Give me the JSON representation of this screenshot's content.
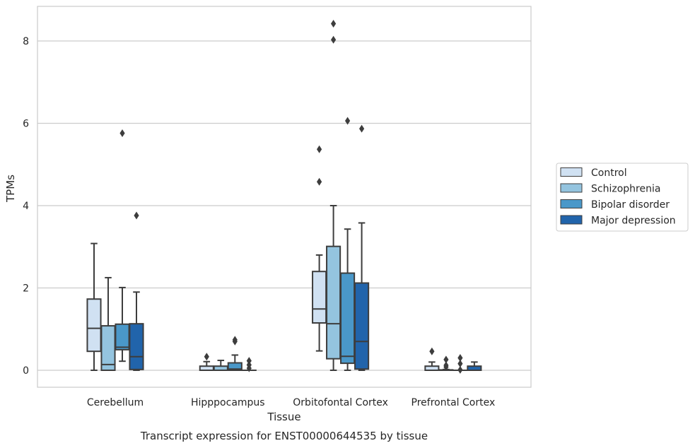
{
  "caption": "Transcript expression for ENST00000644535 by tissue",
  "chart_data": {
    "type": "box",
    "xlabel": "Tissue",
    "ylabel": "TPMs",
    "ylim": [
      -0.4,
      8.85
    ],
    "yticks": [
      0,
      2,
      4,
      6,
      8
    ],
    "grid": "horizontal",
    "legend_position": "right",
    "categories": [
      "Cerebellum",
      "Hipppocampus",
      "Orbitofontal Cortex",
      "Prefrontal Cortex"
    ],
    "series": [
      {
        "name": "Control",
        "color": "#d0e1f2",
        "boxes": [
          {
            "whislo": 0.0,
            "q1": 0.46,
            "med": 1.02,
            "q3": 1.73,
            "whishi": 3.08,
            "fliers": []
          },
          {
            "whislo": 0.0,
            "q1": 0.0,
            "med": 0.0,
            "q3": 0.1,
            "whishi": 0.21,
            "fliers": [
              0.33
            ]
          },
          {
            "whislo": 0.47,
            "q1": 1.15,
            "med": 1.49,
            "q3": 2.4,
            "whishi": 2.8,
            "fliers": [
              4.58,
              5.37
            ]
          },
          {
            "whislo": 0.0,
            "q1": 0.0,
            "med": 0.0,
            "q3": 0.1,
            "whishi": 0.2,
            "fliers": [
              0.46
            ]
          }
        ]
      },
      {
        "name": "Schizophrenia",
        "color": "#94c4df",
        "boxes": [
          {
            "whislo": 0.0,
            "q1": 0.0,
            "med": 0.14,
            "q3": 1.08,
            "whishi": 2.25,
            "fliers": []
          },
          {
            "whislo": 0.0,
            "q1": 0.0,
            "med": 0.0,
            "q3": 0.1,
            "whishi": 0.24,
            "fliers": []
          },
          {
            "whislo": 0.0,
            "q1": 0.28,
            "med": 1.13,
            "q3": 3.01,
            "whishi": 4.0,
            "fliers": [
              8.03,
              8.42
            ]
          },
          {
            "whislo": 0.0,
            "q1": 0.0,
            "med": 0.0,
            "q3": 0.01,
            "whishi": 0.02,
            "fliers": [
              0.08,
              0.12,
              0.26
            ]
          }
        ]
      },
      {
        "name": "Bipolar disorder",
        "color": "#4a98c9",
        "boxes": [
          {
            "whislo": 0.22,
            "q1": 0.5,
            "med": 0.56,
            "q3": 1.12,
            "whishi": 2.01,
            "fliers": [
              5.76
            ]
          },
          {
            "whislo": 0.0,
            "q1": 0.0,
            "med": 0.03,
            "q3": 0.18,
            "whishi": 0.37,
            "fliers": [
              0.7,
              0.74
            ]
          },
          {
            "whislo": 0.0,
            "q1": 0.17,
            "med": 0.34,
            "q3": 2.36,
            "whishi": 3.43,
            "fliers": [
              6.06
            ]
          },
          {
            "whislo": 0.0,
            "q1": 0.0,
            "med": 0.0,
            "q3": 0.0,
            "whishi": 0.0,
            "fliers": [
              0.01,
              0.16,
              0.3
            ]
          }
        ]
      },
      {
        "name": "Major depression",
        "color": "#2164ab",
        "boxes": [
          {
            "whislo": 0.0,
            "q1": 0.02,
            "med": 0.33,
            "q3": 1.13,
            "whishi": 1.9,
            "fliers": [
              3.76
            ]
          },
          {
            "whislo": 0.0,
            "q1": 0.0,
            "med": 0.0,
            "q3": 0.0,
            "whishi": 0.0,
            "fliers": [
              0.05,
              0.13,
              0.23
            ]
          },
          {
            "whislo": 0.0,
            "q1": 0.03,
            "med": 0.7,
            "q3": 2.12,
            "whishi": 3.58,
            "fliers": [
              5.87
            ]
          },
          {
            "whislo": 0.0,
            "q1": 0.0,
            "med": 0.0,
            "q3": 0.1,
            "whishi": 0.2,
            "fliers": []
          }
        ]
      }
    ]
  }
}
